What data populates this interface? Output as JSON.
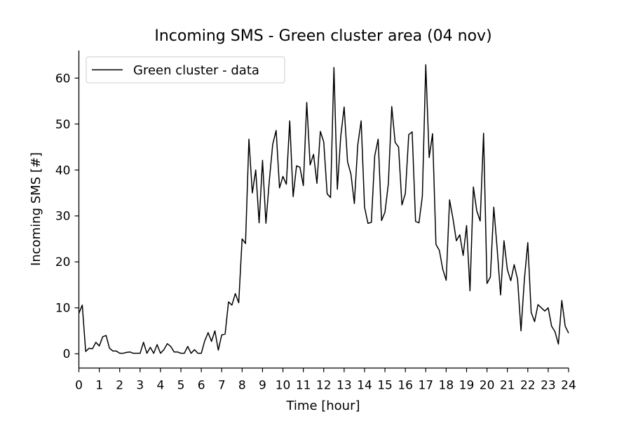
{
  "chart_data": {
    "type": "line",
    "title": "Incoming SMS - Green cluster area (04 nov)",
    "xlabel": "Time [hour]",
    "ylabel": "Incoming SMS [#]",
    "xlim": [
      0,
      24
    ],
    "ylim": [
      -3.1,
      66
    ],
    "xticks": [
      0,
      1,
      2,
      3,
      4,
      5,
      6,
      7,
      8,
      9,
      10,
      11,
      12,
      13,
      14,
      15,
      16,
      17,
      18,
      19,
      20,
      21,
      22,
      23,
      24
    ],
    "yticks": [
      0,
      10,
      20,
      30,
      40,
      50,
      60
    ],
    "grid": false,
    "legend_position": "upper-left",
    "line_color": "#000000",
    "series": [
      {
        "name": "Green cluster - data",
        "x": [
          0,
          0.1667,
          0.3333,
          0.5,
          0.6667,
          0.8333,
          1,
          1.1667,
          1.3333,
          1.5,
          1.6667,
          1.8333,
          2,
          2.1667,
          2.3333,
          2.5,
          2.6667,
          2.8333,
          3,
          3.1667,
          3.3333,
          3.5,
          3.6667,
          3.8333,
          4,
          4.1667,
          4.3333,
          4.5,
          4.6667,
          4.8333,
          5,
          5.1667,
          5.3333,
          5.5,
          5.6667,
          5.8333,
          6,
          6.1667,
          6.3333,
          6.5,
          6.6667,
          6.8333,
          7,
          7.1667,
          7.3333,
          7.5,
          7.6667,
          7.8333,
          8,
          8.1667,
          8.3333,
          8.5,
          8.6667,
          8.8333,
          9,
          9.1667,
          9.3333,
          9.5,
          9.6667,
          9.8333,
          10,
          10.1667,
          10.3333,
          10.5,
          10.6667,
          10.8333,
          11,
          11.1667,
          11.3333,
          11.5,
          11.6667,
          11.8333,
          12,
          12.1667,
          12.3333,
          12.5,
          12.6667,
          12.8333,
          13,
          13.1667,
          13.3333,
          13.5,
          13.6667,
          13.8333,
          14,
          14.1667,
          14.3333,
          14.5,
          14.6667,
          14.8333,
          15,
          15.1667,
          15.3333,
          15.5,
          15.6667,
          15.8333,
          16,
          16.1667,
          16.3333,
          16.5,
          16.6667,
          16.8333,
          17,
          17.1667,
          17.3333,
          17.5,
          17.6667,
          17.8333,
          18,
          18.1667,
          18.3333,
          18.5,
          18.6667,
          18.8333,
          19,
          19.1667,
          19.3333,
          19.5,
          19.6667,
          19.8333,
          20,
          20.1667,
          20.3333,
          20.5,
          20.6667,
          20.8333,
          21,
          21.1667,
          21.3333,
          21.5,
          21.6667,
          21.8333,
          22,
          22.1667,
          22.3333,
          22.5,
          22.6667,
          22.8333,
          23,
          23.1667,
          23.3333,
          23.5,
          23.6667,
          23.8333,
          24
        ],
        "y": [
          8.8,
          10.6,
          0.5,
          1.2,
          1.1,
          2.5,
          1.7,
          3.7,
          4.0,
          1.2,
          0.6,
          0.6,
          0.1,
          0.1,
          0.3,
          0.4,
          0.1,
          0.1,
          0.1,
          2.5,
          0.1,
          1.4,
          0.1,
          2.0,
          0.1,
          0.9,
          2.2,
          1.6,
          0.4,
          0.4,
          0.1,
          0.1,
          1.6,
          0.1,
          0.9,
          0.1,
          0.1,
          2.8,
          4.6,
          2.7,
          5.0,
          0.8,
          4.1,
          4.3,
          11.3,
          10.6,
          13.1,
          11.1,
          25.0,
          24.0,
          46.7,
          35.0,
          40.0,
          28.5,
          42.1,
          28.4,
          37.7,
          45.6,
          48.6,
          36.1,
          38.6,
          36.9,
          50.7,
          34.2,
          40.9,
          40.6,
          36.6,
          54.7,
          41.1,
          43.4,
          37.1,
          48.4,
          46.1,
          34.8,
          34.0,
          62.3,
          35.8,
          47.3,
          53.7,
          41.8,
          39.1,
          32.7,
          45.4,
          50.7,
          31.9,
          28.4,
          28.6,
          43.1,
          46.7,
          29.0,
          30.8,
          37.0,
          53.8,
          46.0,
          45.0,
          32.4,
          34.9,
          47.7,
          48.3,
          28.8,
          28.5,
          34.3,
          62.9,
          42.7,
          47.9,
          23.8,
          22.5,
          18.4,
          16.0,
          33.5,
          29.4,
          24.6,
          25.9,
          21.4,
          27.9,
          13.7,
          36.3,
          31.1,
          28.9,
          48.0,
          15.3,
          16.7,
          31.9,
          22.8,
          12.8,
          24.6,
          18.3,
          15.9,
          19.4,
          16.2,
          5.0,
          16.2,
          24.2,
          9.0,
          7.0,
          10.7,
          10.0,
          9.3,
          10.0,
          6.0,
          4.8,
          2.1,
          11.6,
          6.0,
          4.5
        ]
      }
    ]
  }
}
